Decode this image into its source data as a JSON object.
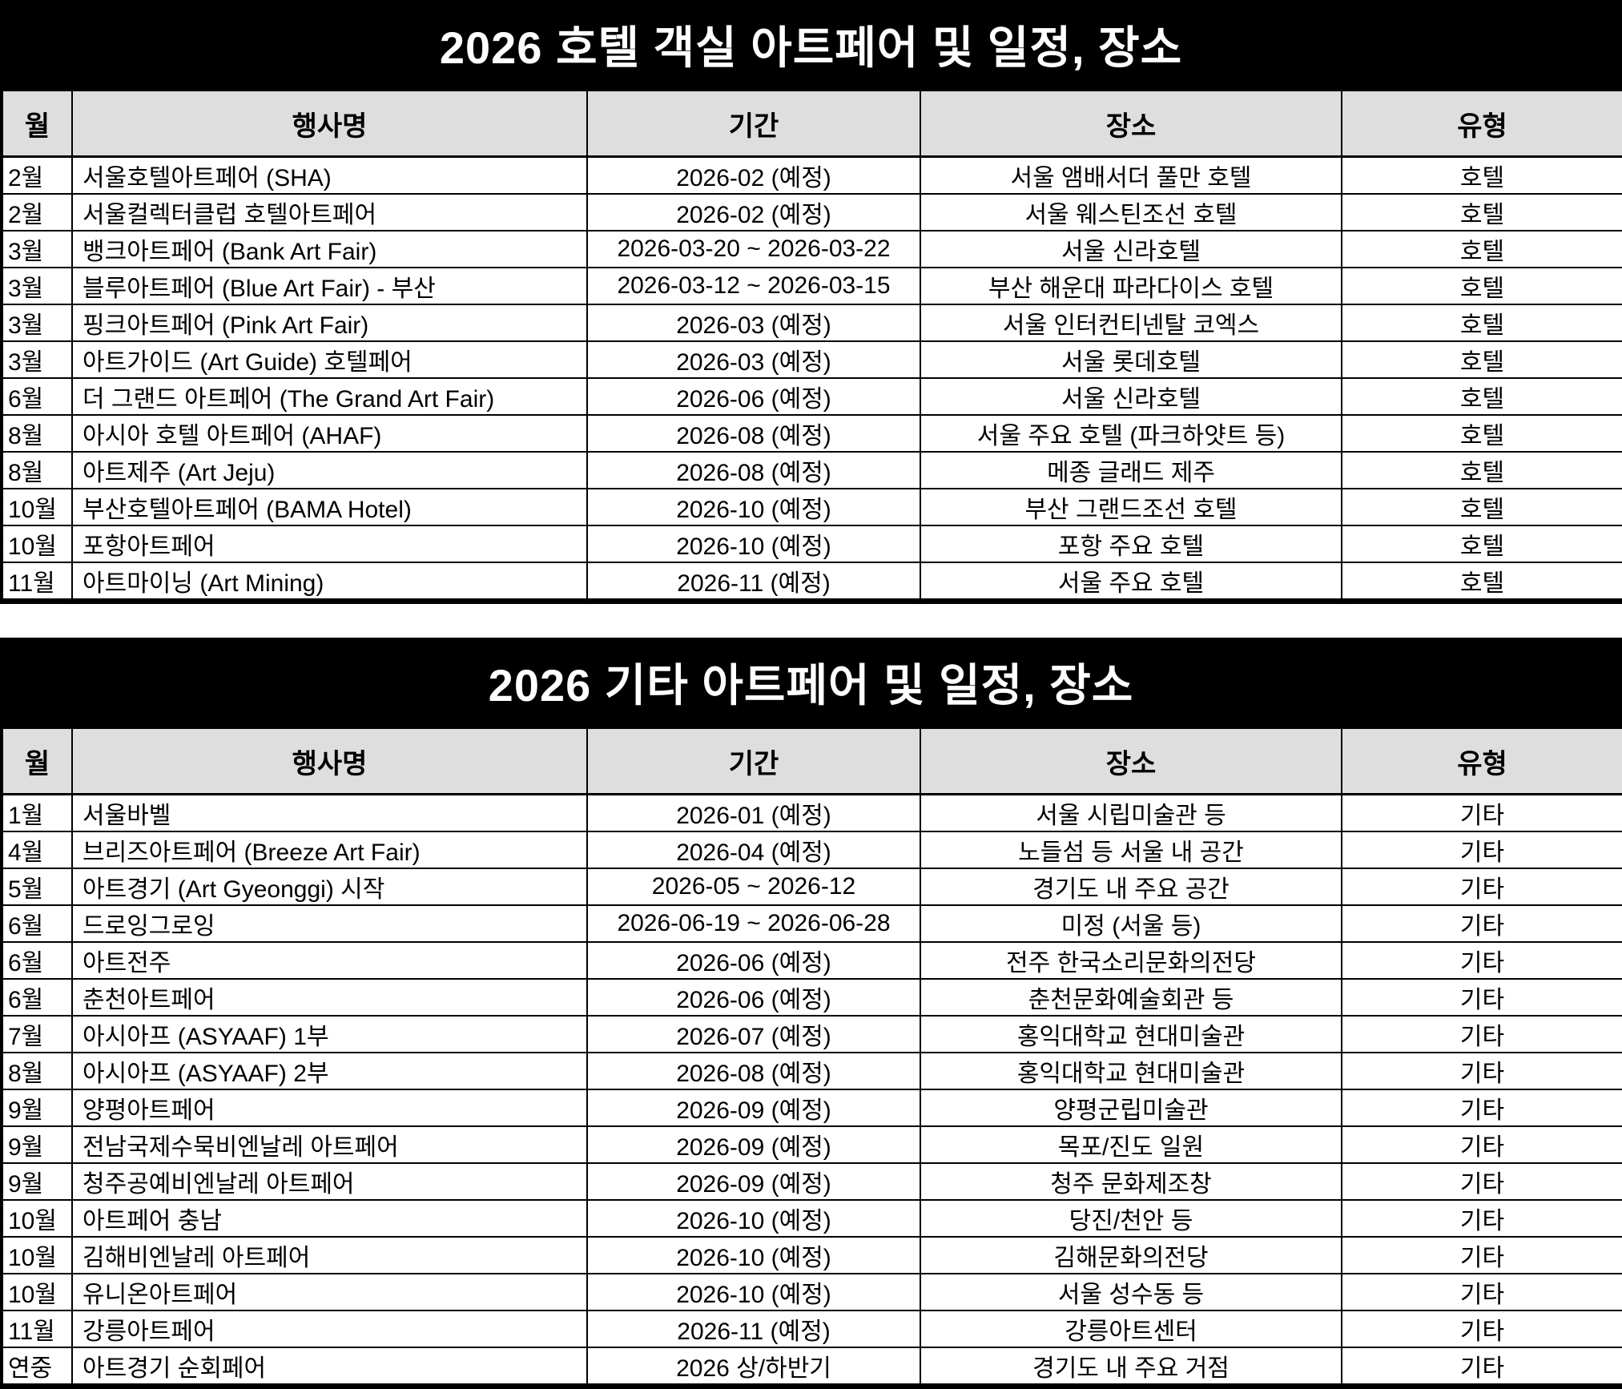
{
  "colors": {
    "title_bg": "#000000",
    "title_text": "#ffffff",
    "header_bg": "#dedede",
    "body_text": "#000000",
    "border": "#000000"
  },
  "tables": [
    {
      "title": "2026 호텔 객실 아트페어 및 일정, 장소",
      "columns": [
        "월",
        "행사명",
        "기간",
        "장소",
        "유형"
      ],
      "rows": [
        [
          "2월",
          "서울호텔아트페어 (SHA)",
          "2026-02 (예정)",
          "서울 앰배서더 풀만 호텔",
          "호텔"
        ],
        [
          "2월",
          "서울컬렉터클럽 호텔아트페어",
          "2026-02 (예정)",
          "서울 웨스틴조선 호텔",
          "호텔"
        ],
        [
          "3월",
          "뱅크아트페어 (Bank Art Fair)",
          "2026-03-20 ~ 2026-03-22",
          "서울 신라호텔",
          "호텔"
        ],
        [
          "3월",
          "블루아트페어 (Blue Art Fair) - 부산",
          "2026-03-12 ~ 2026-03-15",
          "부산 해운대 파라다이스 호텔",
          "호텔"
        ],
        [
          "3월",
          "핑크아트페어 (Pink Art Fair)",
          "2026-03 (예정)",
          "서울 인터컨티넨탈 코엑스",
          "호텔"
        ],
        [
          "3월",
          "아트가이드 (Art Guide) 호텔페어",
          "2026-03 (예정)",
          "서울 롯데호텔",
          "호텔"
        ],
        [
          "6월",
          "더 그랜드 아트페어 (The Grand Art Fair)",
          "2026-06 (예정)",
          "서울 신라호텔",
          "호텔"
        ],
        [
          "8월",
          "아시아 호텔 아트페어 (AHAF)",
          "2026-08 (예정)",
          "서울 주요 호텔 (파크하얏트 등)",
          "호텔"
        ],
        [
          "8월",
          "아트제주 (Art Jeju)",
          "2026-08 (예정)",
          "메종 글래드 제주",
          "호텔"
        ],
        [
          "10월",
          "부산호텔아트페어 (BAMA Hotel)",
          "2026-10 (예정)",
          "부산 그랜드조선 호텔",
          "호텔"
        ],
        [
          "10월",
          "포항아트페어",
          "2026-10 (예정)",
          "포항 주요 호텔",
          "호텔"
        ],
        [
          "11월",
          "아트마이닝 (Art Mining)",
          "2026-11 (예정)",
          "서울 주요 호텔",
          "호텔"
        ]
      ]
    },
    {
      "title": "2026 기타 아트페어 및 일정, 장소",
      "columns": [
        "월",
        "행사명",
        "기간",
        "장소",
        "유형"
      ],
      "rows": [
        [
          "1월",
          "서울바벨",
          "2026-01 (예정)",
          "서울 시립미술관 등",
          "기타"
        ],
        [
          "4월",
          "브리즈아트페어 (Breeze Art Fair)",
          "2026-04 (예정)",
          "노들섬 등 서울 내 공간",
          "기타"
        ],
        [
          "5월",
          "아트경기 (Art Gyeonggi) 시작",
          "2026-05 ~ 2026-12",
          "경기도 내 주요 공간",
          "기타"
        ],
        [
          "6월",
          "드로잉그로잉",
          "2026-06-19 ~ 2026-06-28",
          "미정 (서울 등)",
          "기타"
        ],
        [
          "6월",
          "아트전주",
          "2026-06 (예정)",
          "전주 한국소리문화의전당",
          "기타"
        ],
        [
          "6월",
          "춘천아트페어",
          "2026-06 (예정)",
          "춘천문화예술회관 등",
          "기타"
        ],
        [
          "7월",
          "아시아프 (ASYAAF) 1부",
          "2026-07 (예정)",
          "홍익대학교 현대미술관",
          "기타"
        ],
        [
          "8월",
          "아시아프 (ASYAAF) 2부",
          "2026-08 (예정)",
          "홍익대학교 현대미술관",
          "기타"
        ],
        [
          "9월",
          "양평아트페어",
          "2026-09 (예정)",
          "양평군립미술관",
          "기타"
        ],
        [
          "9월",
          "전남국제수묵비엔날레 아트페어",
          "2026-09 (예정)",
          "목포/진도 일원",
          "기타"
        ],
        [
          "9월",
          "청주공예비엔날레 아트페어",
          "2026-09 (예정)",
          "청주 문화제조창",
          "기타"
        ],
        [
          "10월",
          "아트페어 충남",
          "2026-10 (예정)",
          "당진/천안 등",
          "기타"
        ],
        [
          "10월",
          "김해비엔날레 아트페어",
          "2026-10 (예정)",
          "김해문화의전당",
          "기타"
        ],
        [
          "10월",
          "유니온아트페어",
          "2026-10 (예정)",
          "서울 성수동 등",
          "기타"
        ],
        [
          "11월",
          "강릉아트페어",
          "2026-11 (예정)",
          "강릉아트센터",
          "기타"
        ],
        [
          "연중",
          "아트경기 순회페어",
          "2026 상/하반기",
          "경기도 내 주요 거점",
          "기타"
        ]
      ]
    }
  ]
}
